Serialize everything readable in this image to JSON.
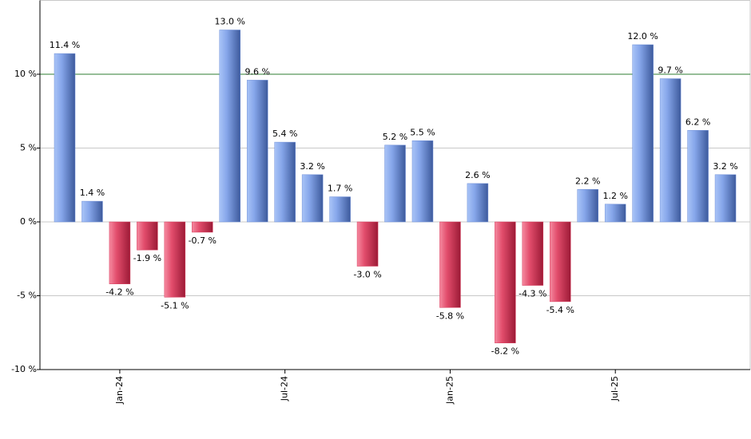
{
  "chart_data": {
    "type": "bar",
    "categories": [
      null,
      null,
      "Jan-24",
      null,
      null,
      null,
      null,
      null,
      "Jul-24",
      null,
      null,
      null,
      null,
      null,
      "Jan-25",
      null,
      null,
      null,
      null,
      null,
      "Jul-25",
      null,
      null,
      null,
      null
    ],
    "values": [
      11.4,
      1.4,
      -4.2,
      -1.9,
      -5.1,
      -0.7,
      13.0,
      9.6,
      5.4,
      3.2,
      1.7,
      -3.0,
      5.2,
      5.5,
      -5.8,
      2.6,
      -8.2,
      -4.3,
      -5.4,
      2.2,
      1.2,
      12.0,
      9.7,
      6.2,
      3.2
    ],
    "value_labels": [
      "11.4 %",
      "1.4 %",
      "-4.2 %",
      "-1.9 %",
      "-5.1 %",
      "-0.7 %",
      "13.0 %",
      "9.6 %",
      "5.4 %",
      "3.2 %",
      "1.7 %",
      "-3.0 %",
      "5.2 %",
      "5.5 %",
      "-5.8 %",
      "2.6 %",
      "-8.2 %",
      "-4.3 %",
      "-5.4 %",
      "2.2 %",
      "1.2 %",
      "12.0 %",
      "9.7 %",
      "6.2 %",
      "3.2 %"
    ],
    "positive_color": "#6f8fd8",
    "negative_color": "#d83a5a",
    "reference_line": 10,
    "reference_color": "#2e7d32",
    "ylim": [
      -10,
      15
    ],
    "yticks": [
      {
        "value": -10,
        "label": "-10 %"
      },
      {
        "value": -5,
        "label": "-5 %"
      },
      {
        "value": 0,
        "label": "0 %"
      },
      {
        "value": 5,
        "label": "5 %"
      },
      {
        "value": 10,
        "label": "10 %"
      }
    ],
    "grid": true
  }
}
